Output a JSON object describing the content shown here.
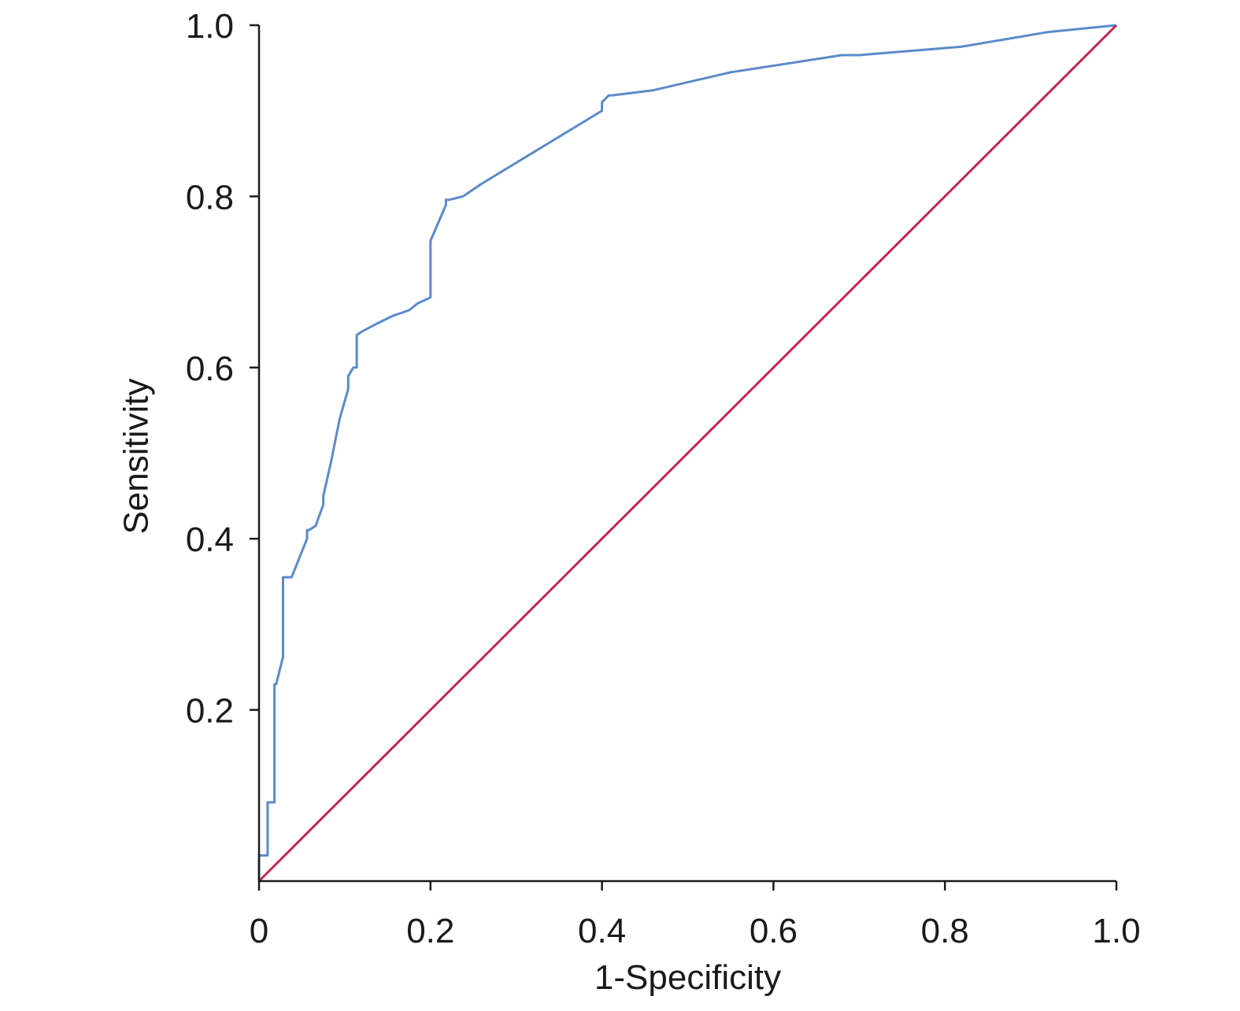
{
  "chart_data": {
    "type": "line",
    "xlabel": "1-Specificity",
    "ylabel": "Sensitivity",
    "xlim": [
      0,
      1.0
    ],
    "ylim": [
      0,
      1.0
    ],
    "x_ticks": [
      0,
      0.2,
      0.4,
      0.6,
      0.8,
      1.0
    ],
    "x_tick_labels": [
      "0",
      "0.2",
      "0.4",
      "0.6",
      "0.8",
      "1.0"
    ],
    "y_ticks": [
      0.2,
      0.4,
      0.6,
      0.8,
      1.0
    ],
    "y_tick_labels": [
      "0.2",
      "0.4",
      "0.6",
      "0.8",
      "1.0"
    ],
    "grid": false,
    "legend": "none",
    "series": [
      {
        "color": "#5b8ac9",
        "x": [
          0,
          0,
          0.01,
          0.01,
          0.018,
          0.018,
          0.02,
          0.02,
          0.028,
          0.028,
          0.03,
          0.03,
          0.038,
          0.056,
          0.056,
          0.058,
          0.066,
          0.075,
          0.075,
          0.084,
          0.094,
          0.104,
          0.104,
          0.11,
          0.114,
          0.114,
          0.12,
          0.135,
          0.155,
          0.175,
          0.185,
          0.2,
          0.2,
          0.218,
          0.218,
          0.222,
          0.238,
          0.26,
          0.4,
          0.4,
          0.408,
          0.412,
          0.46,
          0.55,
          0.68,
          0.7,
          0.82,
          0.92,
          1.0
        ],
        "y": [
          0,
          0.03,
          0.03,
          0.092,
          0.092,
          0.23,
          0.23,
          0.23,
          0.262,
          0.355,
          0.355,
          0.355,
          0.355,
          0.4,
          0.41,
          0.41,
          0.415,
          0.44,
          0.45,
          0.49,
          0.54,
          0.575,
          0.59,
          0.6,
          0.6,
          0.638,
          0.642,
          0.65,
          0.66,
          0.667,
          0.675,
          0.682,
          0.748,
          0.79,
          0.796,
          0.796,
          0.8,
          0.815,
          0.9,
          0.91,
          0.918,
          0.918,
          0.924,
          0.945,
          0.965,
          0.965,
          0.975,
          0.992,
          1.0
        ]
      },
      {
        "color": "#c0284e",
        "x": [
          0,
          1.0
        ],
        "y": [
          0,
          1.0
        ]
      }
    ]
  }
}
